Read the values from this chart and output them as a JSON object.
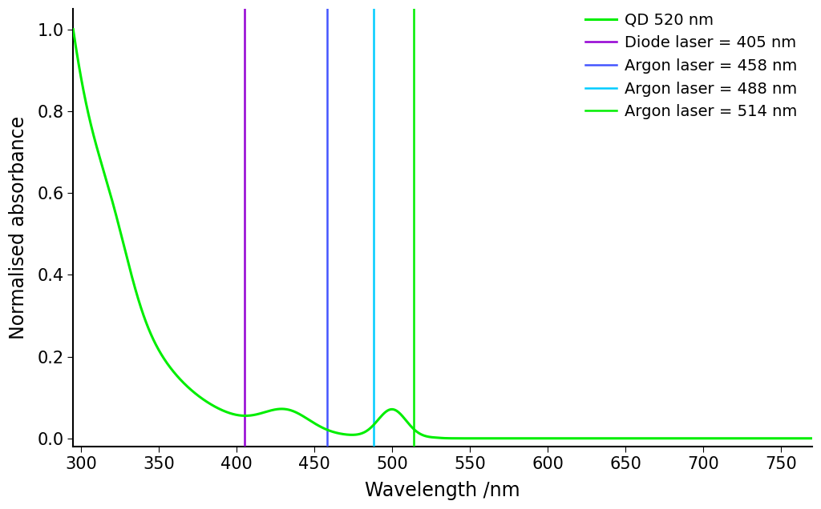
{
  "title": "",
  "xlabel": "Wavelength /nm",
  "ylabel": "Normalised absorbance",
  "xlim": [
    295,
    770
  ],
  "ylim": [
    -0.02,
    1.05
  ],
  "xticks": [
    300,
    350,
    400,
    450,
    500,
    550,
    600,
    650,
    700,
    750
  ],
  "yticks": [
    0.0,
    0.2,
    0.4,
    0.6,
    0.8,
    1.0
  ],
  "qd_color": "#00ee00",
  "laser_lines": [
    {
      "wavelength": 405,
      "color": "#9400D3",
      "label": "Diode laser = 405 nm"
    },
    {
      "wavelength": 458,
      "color": "#4455FF",
      "label": "Argon laser = 458 nm"
    },
    {
      "wavelength": 488,
      "color": "#00CCFF",
      "label": "Argon laser = 488 nm"
    },
    {
      "wavelength": 514,
      "color": "#00ee00",
      "label": "Argon laser = 514 nm"
    }
  ],
  "qd_label": "QD 520 nm",
  "background_color": "#ffffff",
  "fontsize_labels": 17,
  "fontsize_ticks": 15,
  "fontsize_legend": 14
}
